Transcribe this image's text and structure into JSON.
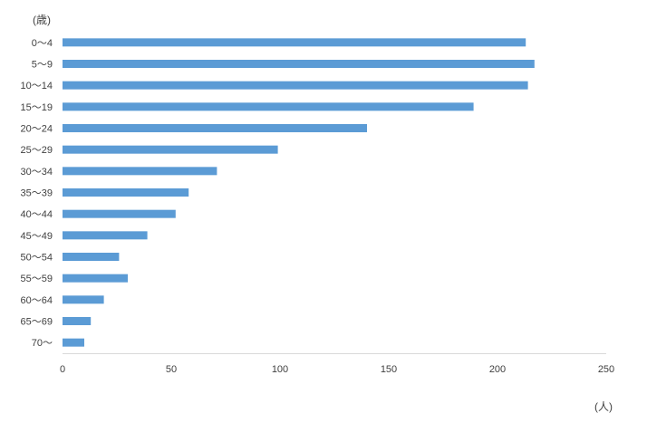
{
  "chart_data": {
    "type": "bar",
    "orientation": "horizontal",
    "title": "",
    "ylabel": "(歳)",
    "xlabel": "(人)",
    "categories": [
      "0〜4",
      "5〜9",
      "10〜14",
      "15〜19",
      "20〜24",
      "25〜29",
      "30〜34",
      "35〜39",
      "40〜44",
      "45〜49",
      "50〜54",
      "55〜59",
      "60〜64",
      "65〜69",
      "70〜"
    ],
    "values": [
      213,
      217,
      214,
      189,
      140,
      99,
      71,
      58,
      52,
      39,
      26,
      30,
      19,
      13,
      10
    ],
    "xlim": [
      0,
      250
    ],
    "xticks": [
      0,
      50,
      100,
      150,
      200,
      250
    ],
    "grid": false,
    "legend": "none",
    "bar_color": "#5b9bd5",
    "axis_color": "#d9d9d9"
  }
}
